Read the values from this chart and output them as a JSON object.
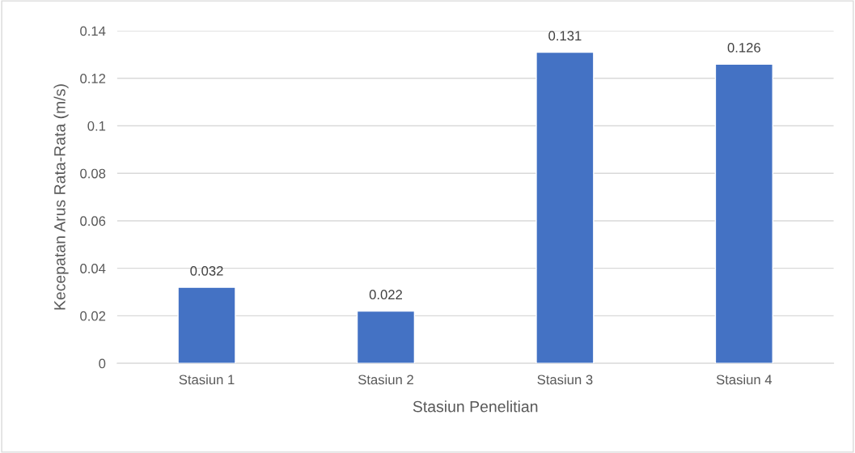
{
  "chart_data": {
    "type": "bar",
    "xlabel": "Stasiun Penelitian",
    "ylabel": "Kecepatan Arus Rata-Rata (m/s)",
    "categories": [
      "Stasiun 1",
      "Stasiun 2",
      "Stasiun 3",
      "Stasiun 4"
    ],
    "values": [
      0.032,
      0.022,
      0.131,
      0.126
    ],
    "color": "#4472c4",
    "ylim": [
      0,
      0.14
    ],
    "yticks": [
      0,
      0.02,
      0.04,
      0.06,
      0.08,
      0.1,
      0.12,
      0.14
    ],
    "grid": "y",
    "data_labels": true
  }
}
